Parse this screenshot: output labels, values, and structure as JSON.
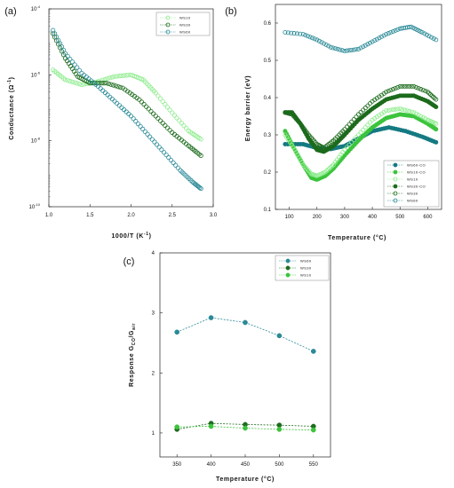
{
  "colors": {
    "teal": "#2a8a97",
    "darkgreen": "#1c6b1c",
    "green": "#3cc43c",
    "lightgreen": "#8fec8f",
    "tealdark": "#157a82"
  },
  "chart_data": [
    {
      "panel_label": "(a)",
      "type": "scatter",
      "xlabel": "1000/T (K",
      "xlabel_sup": "-1",
      "xlabel_close": ")",
      "ylabel": "Conductance (Ω",
      "ylabel_sup": "-1",
      "ylabel_close": ")",
      "xlim": [
        1.0,
        3.0
      ],
      "xticks": [
        "1.0",
        "1.5",
        "2.0",
        "2.5",
        "3.0"
      ],
      "yscale": "log",
      "ylim_exp": [
        -10,
        -4
      ],
      "yticks": [
        {
          "base": "10",
          "exp": "-4"
        },
        {
          "base": "10",
          "exp": "-6"
        },
        {
          "base": "10",
          "exp": "-8"
        },
        {
          "base": "10",
          "exp": "-10"
        }
      ],
      "legend_position": "top-right",
      "series": [
        {
          "name": "WS10",
          "color": "lightgreen",
          "points": [
            [
              1.05,
              -5.85
            ],
            [
              1.2,
              -6.15
            ],
            [
              1.4,
              -6.3
            ],
            [
              1.6,
              -6.2
            ],
            [
              1.8,
              -6.05
            ],
            [
              2.0,
              -6.0
            ],
            [
              2.15,
              -6.15
            ],
            [
              2.3,
              -6.55
            ],
            [
              2.5,
              -7.15
            ],
            [
              2.7,
              -7.7
            ],
            [
              2.85,
              -7.95
            ]
          ]
        },
        {
          "name": "WS30",
          "color": "darkgreen",
          "points": [
            [
              1.05,
              -4.75
            ],
            [
              1.2,
              -5.5
            ],
            [
              1.35,
              -6.05
            ],
            [
              1.5,
              -6.25
            ],
            [
              1.7,
              -6.25
            ],
            [
              1.9,
              -6.4
            ],
            [
              2.1,
              -6.75
            ],
            [
              2.3,
              -7.25
            ],
            [
              2.5,
              -7.75
            ],
            [
              2.7,
              -8.15
            ],
            [
              2.85,
              -8.45
            ]
          ]
        },
        {
          "name": "WS60",
          "color": "teal",
          "points": [
            [
              1.05,
              -4.65
            ],
            [
              1.2,
              -5.35
            ],
            [
              1.4,
              -5.95
            ],
            [
              1.6,
              -6.35
            ],
            [
              1.8,
              -6.8
            ],
            [
              2.0,
              -7.25
            ],
            [
              2.2,
              -7.8
            ],
            [
              2.4,
              -8.35
            ],
            [
              2.6,
              -8.9
            ],
            [
              2.75,
              -9.25
            ],
            [
              2.85,
              -9.45
            ]
          ]
        }
      ]
    },
    {
      "panel_label": "(b)",
      "type": "scatter",
      "xlabel": "Temperature (°C)",
      "ylabel": "Energy barrier (eV)",
      "xlim": [
        50,
        650
      ],
      "ylim": [
        0.1,
        0.65
      ],
      "xticks": [
        "100",
        "200",
        "300",
        "400",
        "500",
        "600"
      ],
      "yticks": [
        "0.1",
        "0.2",
        "0.3",
        "0.4",
        "0.5",
        "0.6"
      ],
      "legend_position": "bottom-right",
      "series": [
        {
          "name": "WS60-CO",
          "color": "tealdark",
          "filled": true,
          "points": [
            [
              85,
              0.275
            ],
            [
              150,
              0.275
            ],
            [
              200,
              0.265
            ],
            [
              250,
              0.262
            ],
            [
              300,
              0.27
            ],
            [
              350,
              0.29
            ],
            [
              400,
              0.31
            ],
            [
              460,
              0.32
            ],
            [
              520,
              0.31
            ],
            [
              580,
              0.295
            ],
            [
              630,
              0.28
            ]
          ]
        },
        {
          "name": "WS10-CO",
          "color": "green",
          "filled": true,
          "points": [
            [
              85,
              0.31
            ],
            [
              120,
              0.26
            ],
            [
              150,
              0.22
            ],
            [
              180,
              0.185
            ],
            [
              200,
              0.18
            ],
            [
              230,
              0.19
            ],
            [
              260,
              0.21
            ],
            [
              300,
              0.245
            ],
            [
              350,
              0.285
            ],
            [
              400,
              0.32
            ],
            [
              450,
              0.345
            ],
            [
              500,
              0.355
            ],
            [
              550,
              0.35
            ],
            [
              600,
              0.33
            ],
            [
              630,
              0.315
            ]
          ]
        },
        {
          "name": "WS10",
          "color": "lightgreen",
          "filled": false,
          "points": [
            [
              85,
              0.3
            ],
            [
              120,
              0.26
            ],
            [
              150,
              0.22
            ],
            [
              180,
              0.195
            ],
            [
              200,
              0.19
            ],
            [
              230,
              0.2
            ],
            [
              260,
              0.22
            ],
            [
              300,
              0.26
            ],
            [
              350,
              0.3
            ],
            [
              400,
              0.34
            ],
            [
              450,
              0.365
            ],
            [
              500,
              0.37
            ],
            [
              550,
              0.36
            ],
            [
              600,
              0.34
            ],
            [
              630,
              0.33
            ]
          ]
        },
        {
          "name": "WS30-CO",
          "color": "darkgreen",
          "filled": true,
          "points": [
            [
              85,
              0.36
            ],
            [
              110,
              0.36
            ],
            [
              140,
              0.33
            ],
            [
              170,
              0.29
            ],
            [
              200,
              0.26
            ],
            [
              225,
              0.255
            ],
            [
              260,
              0.27
            ],
            [
              300,
              0.3
            ],
            [
              350,
              0.34
            ],
            [
              400,
              0.37
            ],
            [
              450,
              0.395
            ],
            [
              500,
              0.405
            ],
            [
              550,
              0.405
            ],
            [
              600,
              0.39
            ],
            [
              630,
              0.375
            ]
          ]
        },
        {
          "name": "WS30",
          "color": "darkgreen",
          "filled": false,
          "points": [
            [
              85,
              0.36
            ],
            [
              110,
              0.355
            ],
            [
              140,
              0.33
            ],
            [
              170,
              0.3
            ],
            [
              200,
              0.275
            ],
            [
              225,
              0.265
            ],
            [
              260,
              0.285
            ],
            [
              300,
              0.315
            ],
            [
              350,
              0.355
            ],
            [
              400,
              0.39
            ],
            [
              450,
              0.415
            ],
            [
              500,
              0.43
            ],
            [
              550,
              0.43
            ],
            [
              600,
              0.415
            ],
            [
              630,
              0.395
            ]
          ]
        },
        {
          "name": "WS60",
          "color": "teal",
          "filled": false,
          "points": [
            [
              85,
              0.575
            ],
            [
              150,
              0.57
            ],
            [
              200,
              0.555
            ],
            [
              250,
              0.535
            ],
            [
              300,
              0.525
            ],
            [
              350,
              0.53
            ],
            [
              400,
              0.55
            ],
            [
              450,
              0.57
            ],
            [
              500,
              0.585
            ],
            [
              540,
              0.59
            ],
            [
              580,
              0.575
            ],
            [
              630,
              0.555
            ]
          ]
        }
      ]
    },
    {
      "panel_label": "(c)",
      "type": "line",
      "xlabel": "Temperature (°C)",
      "ylabel": "Response G",
      "ylabel_sub": "CO",
      "ylabel_mid": "/G",
      "ylabel_sub2": "air",
      "xlim": [
        325,
        575
      ],
      "ylim": [
        0.6,
        4
      ],
      "x": [
        350,
        400,
        450,
        500,
        550
      ],
      "xticks": [
        "350",
        "400",
        "450",
        "500",
        "550"
      ],
      "yticks": [
        "1",
        "2",
        "3",
        "4"
      ],
      "legend_position": "top-right",
      "series": [
        {
          "name": "WS60",
          "color": "teal",
          "values": [
            2.68,
            2.92,
            2.84,
            2.62,
            2.36
          ]
        },
        {
          "name": "WS30",
          "color": "darkgreen",
          "values": [
            1.06,
            1.16,
            1.14,
            1.13,
            1.11
          ]
        },
        {
          "name": "WS10",
          "color": "green",
          "values": [
            1.1,
            1.11,
            1.08,
            1.06,
            1.05
          ]
        }
      ]
    }
  ]
}
